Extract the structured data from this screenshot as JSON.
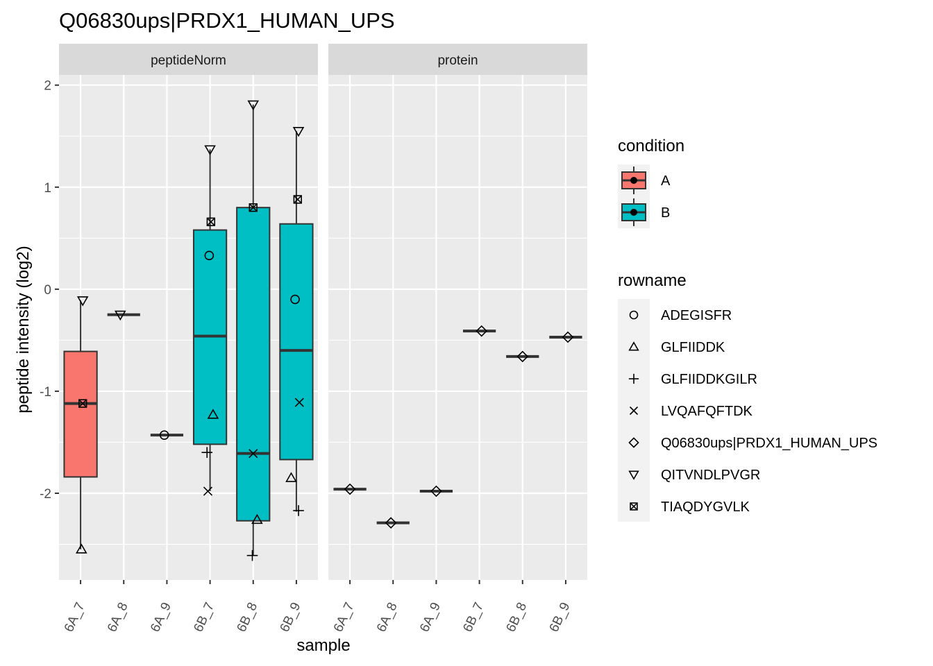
{
  "chart_data": {
    "type": "boxplot",
    "title": "Q06830ups|PRDX1_HUMAN_UPS",
    "xlabel": "sample",
    "ylabel": "peptide intensity (log2)",
    "ylim": [
      -2.85,
      2.1
    ],
    "yticks": [
      2,
      1,
      0,
      -1,
      -2
    ],
    "yticklabels": [
      "2",
      "1",
      "0",
      "-1",
      "-2"
    ],
    "categories": [
      "6A_7",
      "6A_8",
      "6A_9",
      "6B_7",
      "6B_8",
      "6B_9"
    ],
    "grid": true,
    "legend_position": "right",
    "facets": [
      {
        "label": "peptideNorm",
        "boxes": [
          {
            "sample": "6A_7",
            "condition": "A",
            "q1": -1.84,
            "median": -1.12,
            "q3": -0.61,
            "whisker_low": -2.55,
            "whisker_high": -0.11
          },
          {
            "sample": "6A_8",
            "condition": "A",
            "q1": -0.25,
            "median": -0.25,
            "q3": -0.25,
            "whisker_low": -0.25,
            "whisker_high": -0.25
          },
          {
            "sample": "6A_9",
            "condition": "A",
            "q1": -1.43,
            "median": -1.43,
            "q3": -1.43,
            "whisker_low": -1.43,
            "whisker_high": -1.43
          },
          {
            "sample": "6B_7",
            "condition": "B",
            "q1": -1.52,
            "median": -0.46,
            "q3": 0.58,
            "whisker_low": -1.98,
            "whisker_high": 1.37
          },
          {
            "sample": "6B_8",
            "condition": "B",
            "q1": -2.27,
            "median": -1.61,
            "q3": 0.8,
            "whisker_low": -2.61,
            "whisker_high": 1.81
          },
          {
            "sample": "6B_9",
            "condition": "B",
            "q1": -1.67,
            "median": -0.6,
            "q3": 0.64,
            "whisker_low": -2.18,
            "whisker_high": 1.55
          }
        ],
        "points": [
          {
            "sample": "6A_7",
            "rowname": "QITVNDLPVGR",
            "y": -0.11,
            "jitter": 0.05
          },
          {
            "sample": "6A_7",
            "rowname": "TIAQDYGVLK",
            "y": -1.12,
            "jitter": 0.05
          },
          {
            "sample": "6A_7",
            "rowname": "GLFIIDDK",
            "y": -2.55,
            "jitter": 0.02
          },
          {
            "sample": "6A_8",
            "rowname": "QITVNDLPVGR",
            "y": -0.25,
            "jitter": -0.08
          },
          {
            "sample": "6A_9",
            "rowname": "ADEGISFR",
            "y": -1.43,
            "jitter": -0.06
          },
          {
            "sample": "6B_7",
            "rowname": "QITVNDLPVGR",
            "y": 1.37,
            "jitter": 0.0
          },
          {
            "sample": "6B_7",
            "rowname": "TIAQDYGVLK",
            "y": 0.66,
            "jitter": 0.02
          },
          {
            "sample": "6B_7",
            "rowname": "ADEGISFR",
            "y": 0.33,
            "jitter": -0.02
          },
          {
            "sample": "6B_7",
            "rowname": "GLFIIDDK",
            "y": -1.23,
            "jitter": 0.07
          },
          {
            "sample": "6B_7",
            "rowname": "GLFIIDDKGILR",
            "y": -1.6,
            "jitter": -0.07
          },
          {
            "sample": "6B_7",
            "rowname": "LVQAFQFTDK",
            "y": -1.98,
            "jitter": -0.05
          },
          {
            "sample": "6B_8",
            "rowname": "QITVNDLPVGR",
            "y": 1.81,
            "jitter": 0.0
          },
          {
            "sample": "6B_8",
            "rowname": "TIAQDYGVLK",
            "y": 0.8,
            "jitter": 0.0
          },
          {
            "sample": "6B_8",
            "rowname": "LVQAFQFTDK",
            "y": -1.61,
            "jitter": 0.0
          },
          {
            "sample": "6B_8",
            "rowname": "GLFIIDDK",
            "y": -2.26,
            "jitter": 0.09
          },
          {
            "sample": "6B_8",
            "rowname": "GLFIIDDKGILR",
            "y": -2.61,
            "jitter": -0.02
          },
          {
            "sample": "6B_9",
            "rowname": "QITVNDLPVGR",
            "y": 1.55,
            "jitter": 0.05
          },
          {
            "sample": "6B_9",
            "rowname": "TIAQDYGVLK",
            "y": 0.88,
            "jitter": 0.03
          },
          {
            "sample": "6B_9",
            "rowname": "ADEGISFR",
            "y": -0.1,
            "jitter": -0.03
          },
          {
            "sample": "6B_9",
            "rowname": "LVQAFQFTDK",
            "y": -1.11,
            "jitter": 0.07
          },
          {
            "sample": "6B_9",
            "rowname": "GLFIIDDK",
            "y": -1.85,
            "jitter": -0.12
          },
          {
            "sample": "6B_9",
            "rowname": "GLFIIDDKGILR",
            "y": -2.17,
            "jitter": 0.05
          }
        ]
      },
      {
        "label": "protein",
        "boxes": [
          {
            "sample": "6A_7",
            "condition": "A",
            "q1": -1.96,
            "median": -1.96,
            "q3": -1.96,
            "whisker_low": -1.96,
            "whisker_high": -1.96
          },
          {
            "sample": "6A_8",
            "condition": "A",
            "q1": -2.29,
            "median": -2.29,
            "q3": -2.29,
            "whisker_low": -2.29,
            "whisker_high": -2.29
          },
          {
            "sample": "6A_9",
            "condition": "A",
            "q1": -1.98,
            "median": -1.98,
            "q3": -1.98,
            "whisker_low": -1.98,
            "whisker_high": -1.98
          },
          {
            "sample": "6B_7",
            "condition": "B",
            "q1": -0.41,
            "median": -0.41,
            "q3": -0.41,
            "whisker_low": -0.41,
            "whisker_high": -0.41
          },
          {
            "sample": "6B_8",
            "condition": "B",
            "q1": -0.66,
            "median": -0.66,
            "q3": -0.66,
            "whisker_low": -0.66,
            "whisker_high": -0.66
          },
          {
            "sample": "6B_9",
            "condition": "B",
            "q1": -0.47,
            "median": -0.47,
            "q3": -0.47,
            "whisker_low": -0.47,
            "whisker_high": -0.47
          }
        ],
        "points": [
          {
            "sample": "6A_7",
            "rowname": "Q06830ups|PRDX1_HUMAN_UPS",
            "y": -1.96,
            "jitter": 0.0
          },
          {
            "sample": "6A_8",
            "rowname": "Q06830ups|PRDX1_HUMAN_UPS",
            "y": -2.29,
            "jitter": -0.05
          },
          {
            "sample": "6A_9",
            "rowname": "Q06830ups|PRDX1_HUMAN_UPS",
            "y": -1.98,
            "jitter": 0.0
          },
          {
            "sample": "6B_7",
            "rowname": "Q06830ups|PRDX1_HUMAN_UPS",
            "y": -0.41,
            "jitter": 0.05
          },
          {
            "sample": "6B_8",
            "rowname": "Q06830ups|PRDX1_HUMAN_UPS",
            "y": -0.66,
            "jitter": 0.0
          },
          {
            "sample": "6B_9",
            "rowname": "Q06830ups|PRDX1_HUMAN_UPS",
            "y": -0.47,
            "jitter": 0.05
          }
        ]
      }
    ],
    "legend_condition": {
      "title": "condition",
      "items": [
        {
          "label": "A",
          "color": "#F8766D"
        },
        {
          "label": "B",
          "color": "#00BFC4"
        }
      ]
    },
    "legend_rowname": {
      "title": "rowname",
      "items": [
        {
          "label": "ADEGISFR",
          "shape": "circle"
        },
        {
          "label": "GLFIIDDK",
          "shape": "triangle"
        },
        {
          "label": "GLFIIDDKGILR",
          "shape": "plus"
        },
        {
          "label": "LVQAFQFTDK",
          "shape": "cross"
        },
        {
          "label": "Q06830ups|PRDX1_HUMAN_UPS",
          "shape": "diamond"
        },
        {
          "label": "QITVNDLPVGR",
          "shape": "triangle-down"
        },
        {
          "label": "TIAQDYGVLK",
          "shape": "square-cross"
        }
      ]
    }
  }
}
